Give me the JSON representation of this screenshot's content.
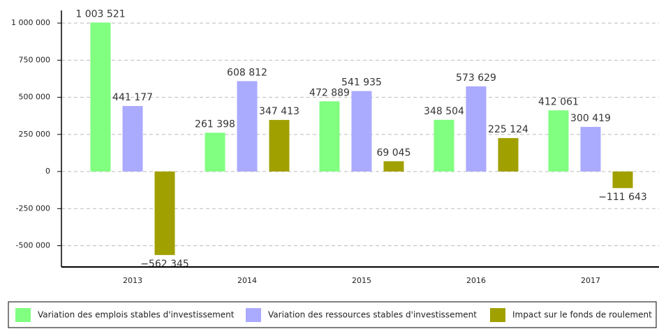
{
  "chart_data": {
    "type": "bar",
    "categories": [
      "2013",
      "2014",
      "2015",
      "2016",
      "2017"
    ],
    "series": [
      {
        "name": "Variation des emplois stables d'investissement",
        "color": "#80ff80",
        "values": [
          1003521,
          261398,
          472889,
          348504,
          412061
        ],
        "value_labels": [
          "1 003 521",
          "261 398",
          "472 889",
          "348 504",
          "412 061"
        ]
      },
      {
        "name": "Variation des ressources stables d'investissement",
        "color": "#aaaaff",
        "values": [
          441177,
          608812,
          541935,
          573629,
          300419
        ],
        "value_labels": [
          "441 177",
          "608 812",
          "541 935",
          "573 629",
          "300 419"
        ]
      },
      {
        "name": "Impact sur le fonds de roulement",
        "color": "#a0a000",
        "values": [
          -562345,
          347413,
          69045,
          225124,
          -111643
        ],
        "value_labels": [
          "−562 345",
          "347 413",
          "69 045",
          "225 124",
          "−111 643"
        ]
      }
    ],
    "ylim": [
      -643000,
      1085000
    ],
    "yticks": [
      {
        "value": -500000,
        "label": "-500 000"
      },
      {
        "value": -250000,
        "label": "-250 000"
      },
      0,
      {
        "value": 250000,
        "label": "250 000"
      },
      {
        "value": 500000,
        "label": "500 000"
      },
      {
        "value": 750000,
        "label": "750 000"
      },
      {
        "value": 1000000,
        "label": "1 000 000"
      }
    ],
    "grid": true
  }
}
